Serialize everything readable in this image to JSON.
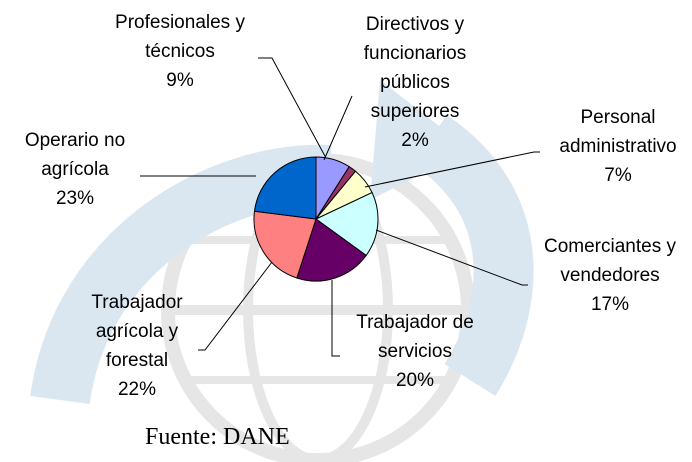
{
  "chart_data": {
    "type": "pie",
    "categories": [
      "Profesionales y técnicos",
      "Directivos y funcionarios públicos superiores",
      "Personal administrativo",
      "Comerciantes y vendedores",
      "Trabajador de servicios",
      "Trabajador agrícola y forestal",
      "Operario no agrícola"
    ],
    "values": [
      9,
      2,
      7,
      17,
      20,
      22,
      23
    ],
    "value_labels": [
      "9%",
      "2%",
      "7%",
      "17%",
      "20%",
      "22%",
      "23%"
    ],
    "colors": [
      "#9999ff",
      "#993366",
      "#ffffcc",
      "#ccffff",
      "#660066",
      "#ff8080",
      "#0066cc"
    ]
  },
  "source": "Fuente: DANE"
}
